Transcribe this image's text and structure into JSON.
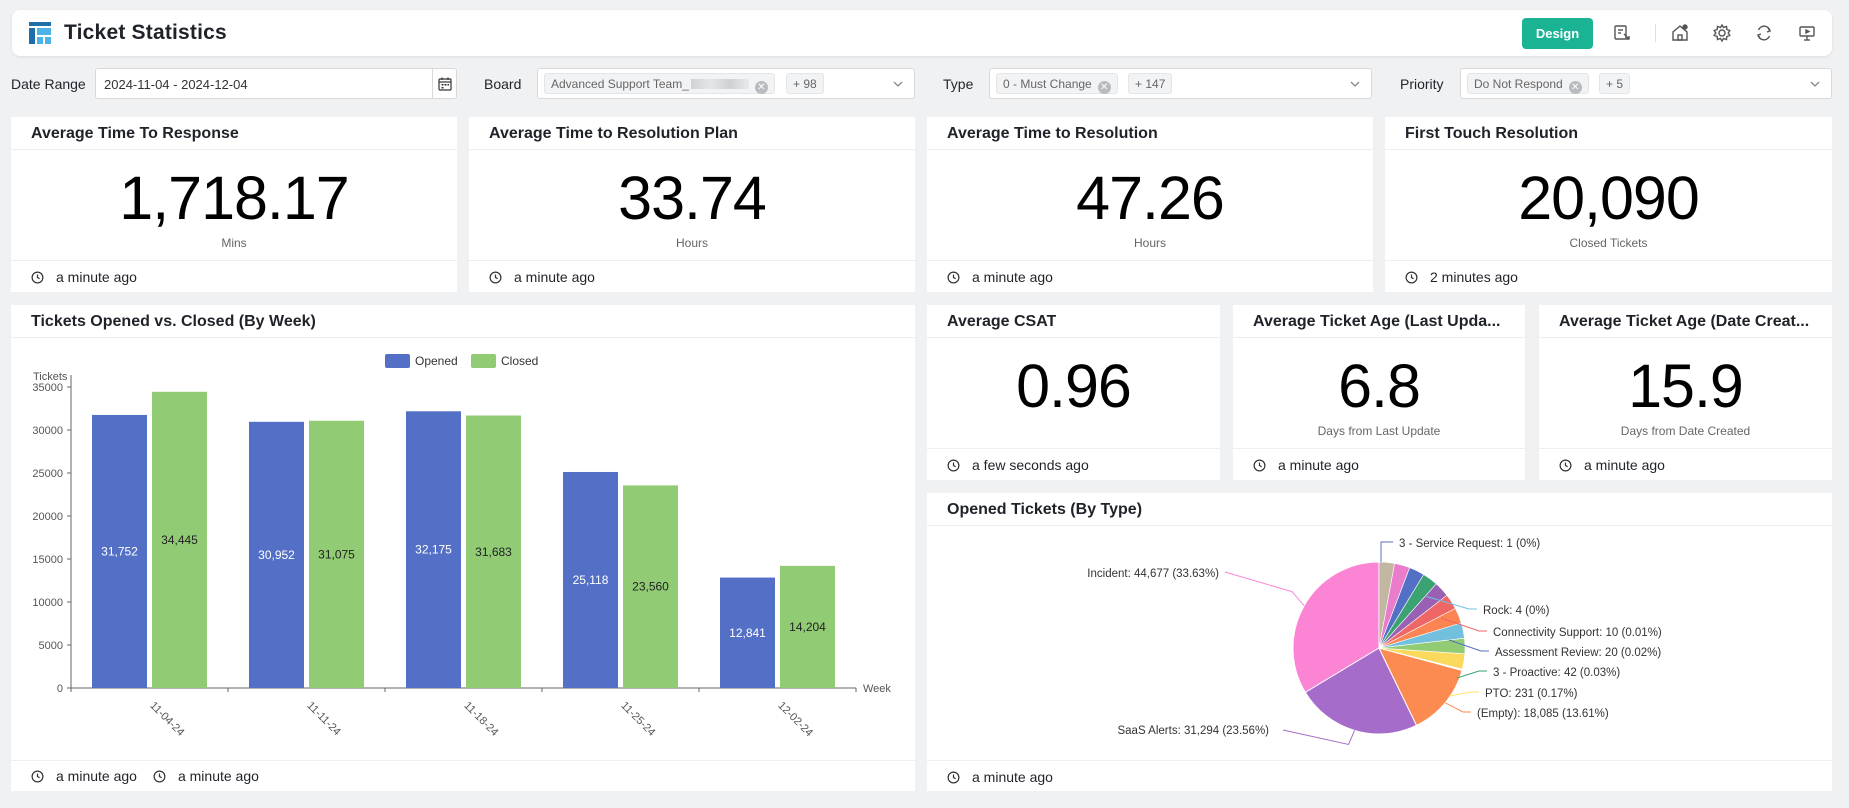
{
  "header": {
    "title": "Ticket Statistics",
    "design_label": "Design",
    "icons": [
      "dashboard-logo-icon",
      "export-icon",
      "share-icon",
      "settings-icon",
      "refresh-icon",
      "present-icon"
    ]
  },
  "filters": {
    "date_range": {
      "label": "Date Range",
      "value": "2024-11-04 - 2024-12-04"
    },
    "board": {
      "label": "Board",
      "tag": "Advanced Support Team_",
      "more": "+ 98"
    },
    "type": {
      "label": "Type",
      "tag": "0 - Must Change",
      "more": "+ 147"
    },
    "priority": {
      "label": "Priority",
      "tag": "Do Not Respond",
      "more": "+ 5"
    }
  },
  "kpis": [
    {
      "title": "Average Time To Response",
      "value": "1,718.17",
      "unit": "Mins",
      "updated": "a minute ago"
    },
    {
      "title": "Average Time to Resolution Plan",
      "value": "33.74",
      "unit": "Hours",
      "updated": "a minute ago"
    },
    {
      "title": "Average Time to Resolution",
      "value": "47.26",
      "unit": "Hours",
      "updated": "a minute ago"
    },
    {
      "title": "First Touch Resolution",
      "value": "20,090",
      "unit": "Closed Tickets",
      "updated": "2 minutes ago"
    },
    {
      "title": "Average CSAT",
      "value": "0.96",
      "unit": "",
      "updated": "a few seconds ago"
    },
    {
      "title": "Average Ticket Age (Last Upda...",
      "value": "6.8",
      "unit": "Days from Last Update",
      "updated": "a minute ago"
    },
    {
      "title": "Average Ticket Age (Date Creat...",
      "value": "15.9",
      "unit": "Days from Date Created",
      "updated": "a minute ago"
    }
  ],
  "bar_card": {
    "title": "Tickets Opened vs. Closed (By Week)",
    "updated_1": "a minute ago",
    "updated_2": "a minute ago"
  },
  "pie_card": {
    "title": "Opened Tickets (By Type)",
    "updated": "a minute ago"
  },
  "colors": {
    "accent": "#1ab394",
    "opened": "#5470c6",
    "closed": "#91cc75"
  },
  "chart_data": [
    {
      "type": "bar",
      "title": "Tickets Opened vs. Closed (By Week)",
      "xlabel": "Week",
      "ylabel": "Tickets",
      "ylim": [
        0,
        35000
      ],
      "yticks": [
        0,
        5000,
        10000,
        15000,
        20000,
        25000,
        30000,
        35000
      ],
      "categories": [
        "11-04-24",
        "11-11-24",
        "11-18-24",
        "11-25-24",
        "12-02-24"
      ],
      "legend": "top-center",
      "grid": false,
      "series": [
        {
          "name": "Opened",
          "values": [
            31752,
            30952,
            32175,
            25118,
            12841
          ],
          "labels": [
            "31,752",
            "30,952",
            "32,175",
            "25,118",
            "12,841"
          ]
        },
        {
          "name": "Closed",
          "values": [
            34445,
            31075,
            31683,
            23560,
            14204
          ],
          "labels": [
            "34,445",
            "31,075",
            "31,683",
            "23,560",
            "14,204"
          ]
        }
      ]
    },
    {
      "type": "pie",
      "title": "Opened Tickets (By Type)",
      "slices": [
        {
          "label": "Incident: 44,677 (33.63%)",
          "value": 44677,
          "color": "#fc84d4"
        },
        {
          "label": "SaaS Alerts: 31,294 (23.56%)",
          "value": 31294,
          "color": "#a56cc9"
        },
        {
          "label": "(Empty): 18,085 (13.61%)",
          "value": 18085,
          "color": "#fc8b52"
        },
        {
          "label": "PTO: 231 (0.17%)",
          "value": 231,
          "color": "#fbe36a"
        },
        {
          "label": "3 - Proactive: 42 (0.03%)",
          "value": 42,
          "color": "#5470c6"
        },
        {
          "label": "Assessment Review: 20 (0.02%)",
          "value": 20,
          "color": "#ee6666"
        },
        {
          "label": "Connectivity Support: 10 (0.01%)",
          "value": 10,
          "color": "#9a60b4"
        },
        {
          "label": "Rock: 4 (0%)",
          "value": 4,
          "color": "#73c0de"
        },
        {
          "label": "3 - Service Request: 1 (0%)",
          "value": 1,
          "color": "#5470c6"
        }
      ]
    }
  ]
}
